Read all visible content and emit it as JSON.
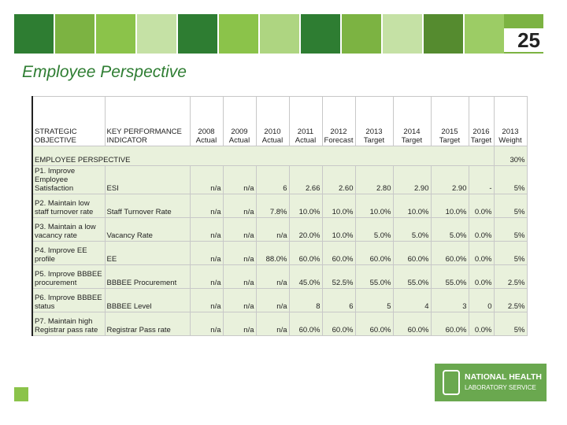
{
  "header": {
    "page_number": "25",
    "title": "Employee Perspective"
  },
  "table": {
    "columns": [
      "STRATEGIC OBJECTIVE",
      "KEY PERFORMANCE INDICATOR",
      "2008 Actual",
      "2009 Actual",
      "2010 Actual",
      "2011 Actual",
      "2012 Forecast",
      "2013 Target",
      "2014 Target",
      "2015 Target",
      "2016 Target",
      "2013 Weight"
    ],
    "section": {
      "label": "EMPLOYEE PERSPECTIVE",
      "weight": "30%"
    },
    "rows": [
      [
        "P1. Improve Employee Satisfaction",
        "ESI",
        "n/a",
        "n/a",
        "6",
        "2.66",
        "2.60",
        "2.80",
        "2.90",
        "2.90",
        "-",
        "5%"
      ],
      [
        "P2. Maintain low staff turnover rate",
        "Staff Turnover Rate",
        "n/a",
        "n/a",
        "7.8%",
        "10.0%",
        "10.0%",
        "10.0%",
        "10.0%",
        "10.0%",
        "0.0%",
        "5%"
      ],
      [
        "P3. Maintain a low vacancy rate",
        "Vacancy Rate",
        "n/a",
        "n/a",
        "n/a",
        "20.0%",
        "10.0%",
        "5.0%",
        "5.0%",
        "5.0%",
        "0.0%",
        "5%"
      ],
      [
        "P4. Improve EE profile",
        "EE",
        "n/a",
        "n/a",
        "88.0%",
        "60.0%",
        "60.0%",
        "60.0%",
        "60.0%",
        "60.0%",
        "0.0%",
        "5%"
      ],
      [
        "P5. Improve BBBEE procurement",
        "BBBEE Procurement",
        "n/a",
        "n/a",
        "n/a",
        "45.0%",
        "52.5%",
        "55.0%",
        "55.0%",
        "55.0%",
        "0.0%",
        "2.5%"
      ],
      [
        "P6. Improve BBBEE status",
        "BBBEE Level",
        "n/a",
        "n/a",
        "n/a",
        "8",
        "6",
        "5",
        "4",
        "3",
        "0",
        "2.5%"
      ],
      [
        "P7. Maintain high Registrar pass rate",
        "Registrar Pass rate",
        "n/a",
        "n/a",
        "n/a",
        "60.0%",
        "60.0%",
        "60.0%",
        "60.0%",
        "60.0%",
        "0.0%",
        "5%"
      ]
    ]
  },
  "logo": {
    "line1": "NATIONAL HEALTH",
    "line2": "LABORATORY SERVICE"
  }
}
